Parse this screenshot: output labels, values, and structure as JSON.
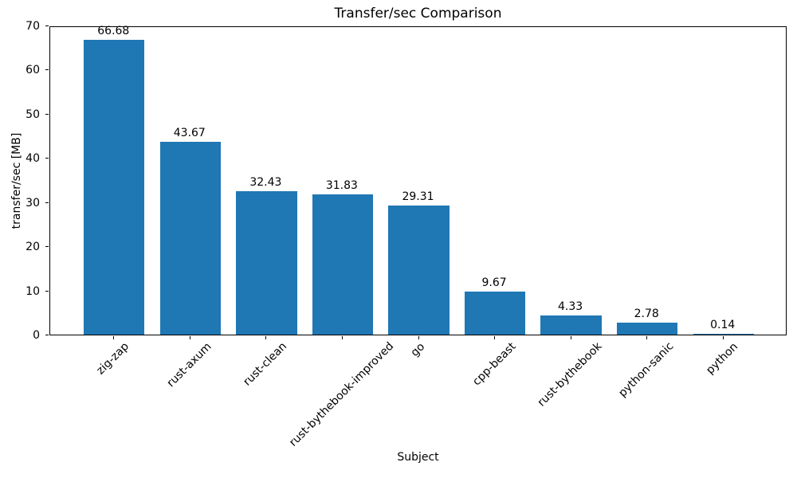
{
  "chart_data": {
    "type": "bar",
    "title": "Transfer/sec Comparison",
    "xlabel": "Subject",
    "ylabel": "transfer/sec [MB]",
    "categories": [
      "zig-zap",
      "rust-axum",
      "rust-clean",
      "rust-bythebook-improved",
      "go",
      "cpp-beast",
      "rust-bythebook",
      "python-sanic",
      "python"
    ],
    "values": [
      66.68,
      43.67,
      32.43,
      31.83,
      29.31,
      9.67,
      4.33,
      2.78,
      0.14
    ],
    "value_labels": [
      "66.68",
      "43.67",
      "32.43",
      "31.83",
      "29.31",
      "9.67",
      "4.33",
      "2.78",
      "0.14"
    ],
    "ylim": [
      0,
      70
    ],
    "yticks": [
      0,
      10,
      20,
      30,
      40,
      50,
      60,
      70
    ],
    "bar_color": "#1f77b4",
    "axis_color": "#000000",
    "grid": false,
    "legend": null,
    "xtick_rotation_deg": 45
  }
}
